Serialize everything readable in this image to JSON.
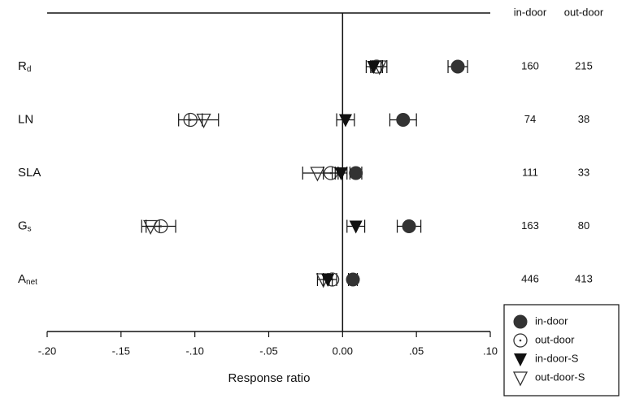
{
  "chart_data": {
    "type": "forest",
    "xlabel": "Response ratio",
    "xlim": [
      -0.2,
      0.1
    ],
    "xticks": [
      {
        "value": -0.2,
        "label": "-.20"
      },
      {
        "value": -0.15,
        "label": "-.15"
      },
      {
        "value": -0.1,
        "label": "-.10"
      },
      {
        "value": -0.05,
        "label": "-.05"
      },
      {
        "value": 0,
        "label": "0.00"
      },
      {
        "value": 0.05,
        "label": ".05"
      },
      {
        "value": 0.1,
        "label": ".10"
      }
    ],
    "categories": [
      {
        "text": "R",
        "sub": "d"
      },
      {
        "text": "LN"
      },
      {
        "text": "SLA"
      },
      {
        "text": "G",
        "sub": "s"
      },
      {
        "text": "A",
        "sub": "net"
      }
    ],
    "series": [
      {
        "name": "in-door",
        "marker": "circle-filled",
        "color": "#333333",
        "values": [
          0.078,
          0.041,
          0.009,
          0.045,
          0.007
        ],
        "errors": [
          0.0066,
          0.009,
          0.004,
          0.008,
          0.003
        ]
      },
      {
        "name": "out-door",
        "marker": "circle-open-dot",
        "color": "#333333",
        "values": [
          0.023,
          -0.103,
          -0.008,
          -0.123,
          -0.007
        ],
        "errors": [
          0.004,
          0.008,
          0.005,
          0.01,
          0.003
        ]
      },
      {
        "name": "in-door-S",
        "marker": "triangle-filled",
        "color": "#111111",
        "values": [
          0.021,
          0.002,
          -0.001,
          0.009,
          -0.01
        ],
        "errors": [
          0.005,
          0.006,
          0.004,
          0.006,
          0.003
        ]
      },
      {
        "name": "out-door-S",
        "marker": "triangle-open",
        "color": "#333333",
        "values": [
          0.025,
          -0.094,
          -0.017,
          -0.13,
          -0.013
        ],
        "errors": [
          0.005,
          0.01,
          0.01,
          0.006,
          0.004
        ]
      }
    ],
    "count_columns": [
      {
        "header": "in-door",
        "values": [
          160,
          74,
          111,
          163,
          446
        ]
      },
      {
        "header": "out-door",
        "values": [
          215,
          38,
          33,
          80,
          413
        ]
      }
    ]
  }
}
